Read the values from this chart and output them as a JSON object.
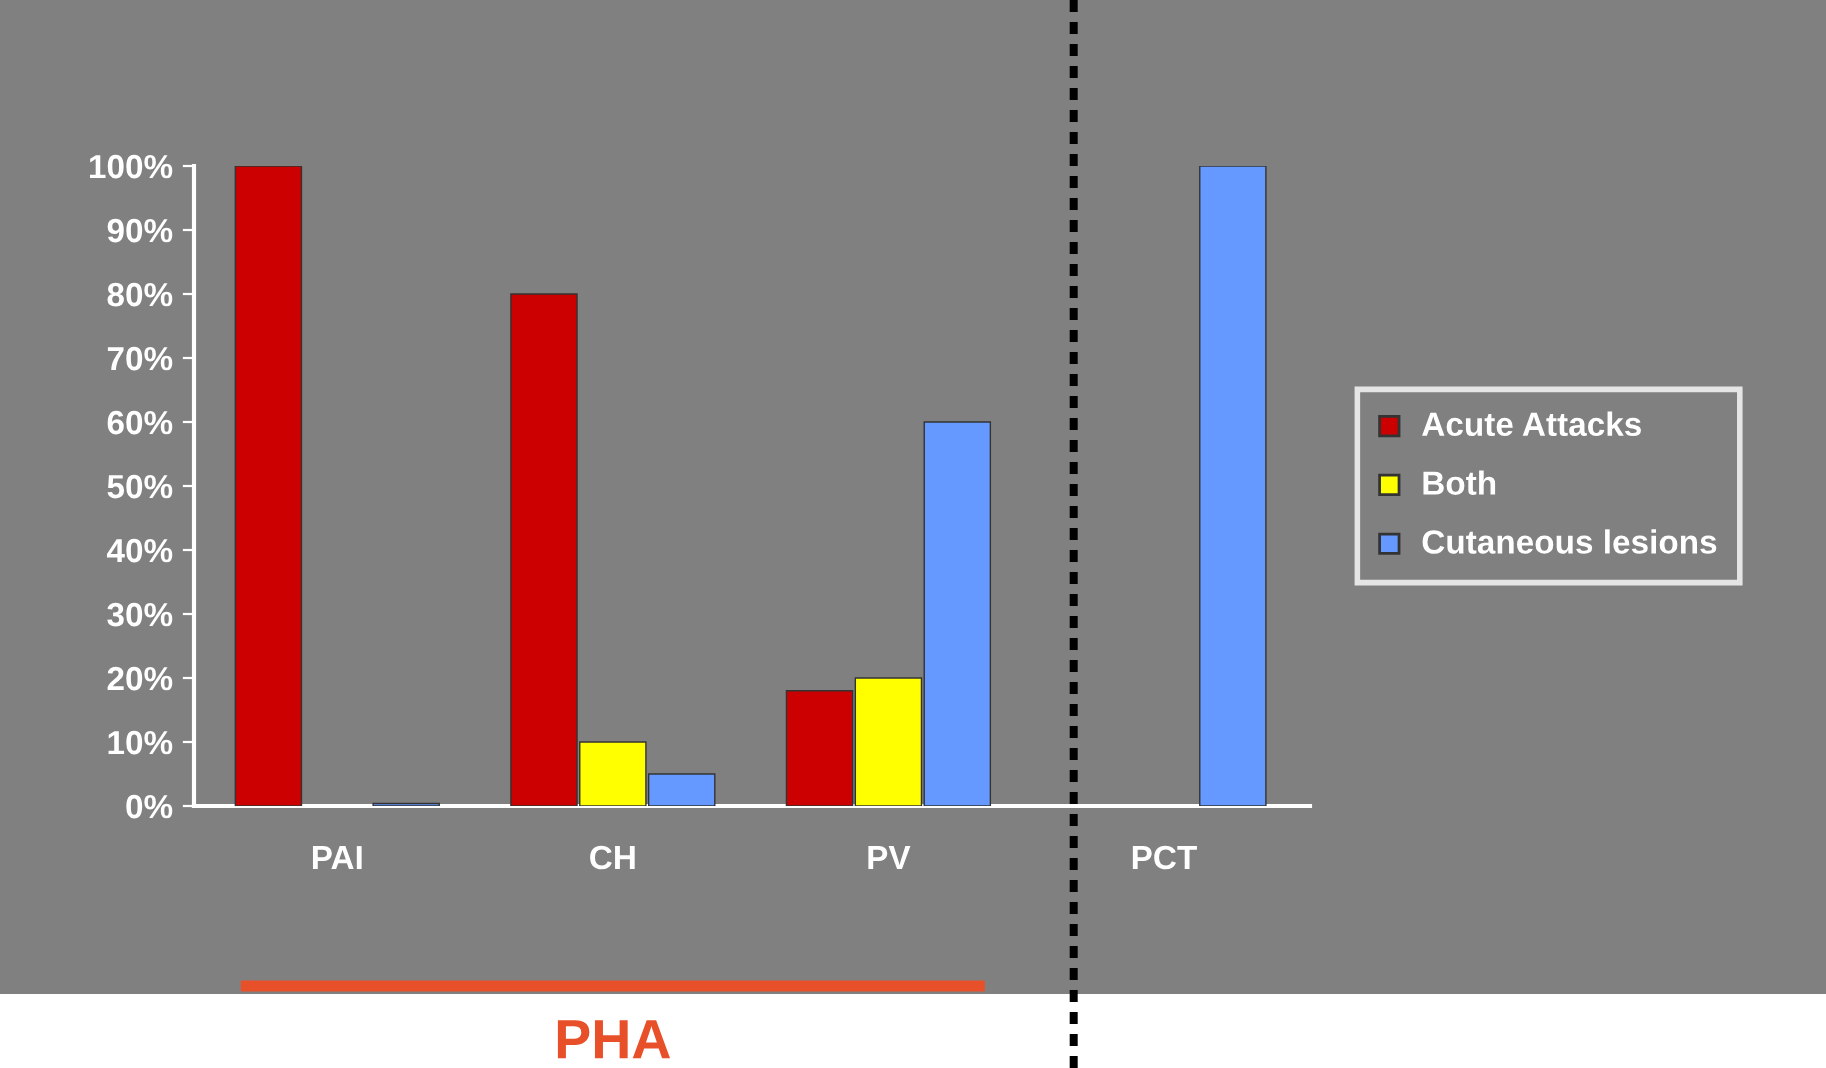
{
  "chart_data": {
    "type": "bar",
    "categories": [
      "PAI",
      "CH",
      "PV",
      "PCT"
    ],
    "series": [
      {
        "name": "Acute Attacks",
        "color": "#cc0000",
        "values": [
          100,
          80,
          18,
          null
        ]
      },
      {
        "name": "Both",
        "color": "#ffff00",
        "values": [
          null,
          10,
          20,
          null
        ]
      },
      {
        "name": "Cutaneous lesions",
        "color": "#6699ff",
        "values": [
          0,
          5,
          60,
          100
        ]
      }
    ],
    "ylim": [
      0,
      100
    ],
    "yticks": [
      {
        "value": 0,
        "label": "0%"
      },
      {
        "value": 10,
        "label": "10%"
      },
      {
        "value": 20,
        "label": "20%"
      },
      {
        "value": 30,
        "label": "30%"
      },
      {
        "value": 40,
        "label": "40%"
      },
      {
        "value": 50,
        "label": "50%"
      },
      {
        "value": 60,
        "label": "60%"
      },
      {
        "value": 70,
        "label": "70%"
      },
      {
        "value": 80,
        "label": "80%"
      },
      {
        "value": 90,
        "label": "90%"
      },
      {
        "value": 100,
        "label": "100%"
      }
    ],
    "annotations": [
      "PHA"
    ],
    "grid": false,
    "legend": "right"
  }
}
